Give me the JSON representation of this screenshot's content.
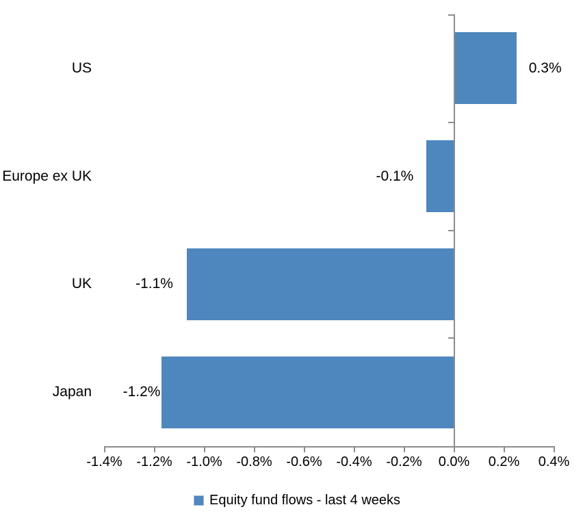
{
  "chart_data": {
    "type": "bar",
    "orientation": "horizontal",
    "title": "",
    "xlabel": "",
    "ylabel": "",
    "categories": [
      "US",
      "Europe ex UK",
      "UK",
      "Japan"
    ],
    "series": [
      {
        "name": "Equity fund flows - last 4 weeks",
        "values": [
          0.25,
          -0.11,
          -1.07,
          -1.17
        ],
        "value_labels": [
          "0.3%",
          "-0.1%",
          "-1.1%",
          "-1.2%"
        ]
      }
    ],
    "series_name": "Equity fund flows - last 4 weeks",
    "xlim": [
      -1.4,
      0.4
    ],
    "x_tick_values": [
      -1.4,
      -1.2,
      -1.0,
      -0.8,
      -0.6,
      -0.4,
      -0.2,
      0.0,
      0.2,
      0.4
    ],
    "x_tick_labels": [
      "-1.4%",
      "-1.2%",
      "-1.0%",
      "-0.8%",
      "-0.6%",
      "-0.4%",
      "-0.2%",
      "0.0%",
      "0.2%",
      "0.4%"
    ],
    "grid": false,
    "legend_position": "bottom",
    "colors": {
      "bar": "#4E86BE",
      "axis": "#8C8C8C",
      "text": "#000000",
      "background": "#FFFFFF"
    }
  }
}
